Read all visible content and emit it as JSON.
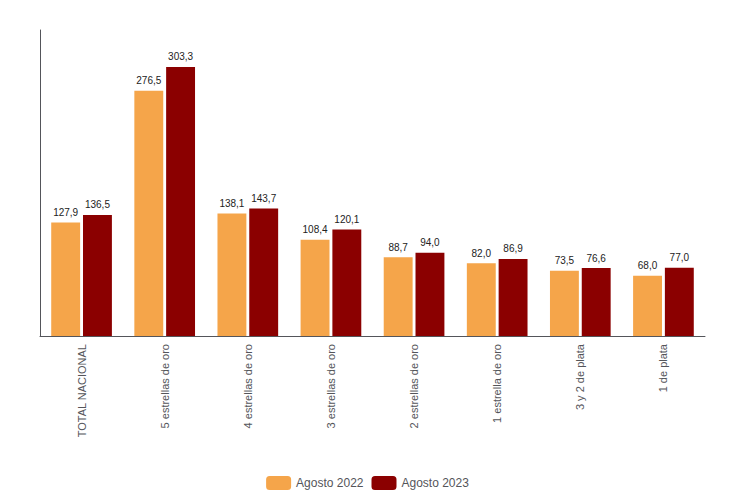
{
  "chart_data": {
    "type": "bar",
    "categories": [
      "TOTAL NACIONAL",
      "5 estrellas de oro",
      "4 estrellas de oro",
      "3 estrellas de oro",
      "2 estrellas de oro",
      "1 estrella de oro",
      "3 y 2 de plata",
      "1 de plata"
    ],
    "series": [
      {
        "name": "Agosto 2022",
        "color": "#F5A54A",
        "values": [
          127.9,
          276.5,
          138.1,
          108.4,
          88.7,
          82.0,
          73.5,
          68.0
        ],
        "value_labels": [
          "127,9",
          "276,5",
          "138,1",
          "108,4",
          "88,7",
          "82,0",
          "73,5",
          "68,0"
        ]
      },
      {
        "name": "Agosto 2023",
        "color": "#8B0000",
        "values": [
          136.5,
          303.3,
          143.7,
          120.1,
          94.0,
          86.9,
          76.6,
          77.0
        ],
        "value_labels": [
          "136,5",
          "303,3",
          "143,7",
          "120,1",
          "94,0",
          "86,9",
          "76,6",
          "77,0"
        ]
      }
    ],
    "ylim": [
      0,
      345
    ],
    "yticks": [],
    "grid": false,
    "legend": "bottom",
    "data_labels": true,
    "tick_labels": "x"
  }
}
